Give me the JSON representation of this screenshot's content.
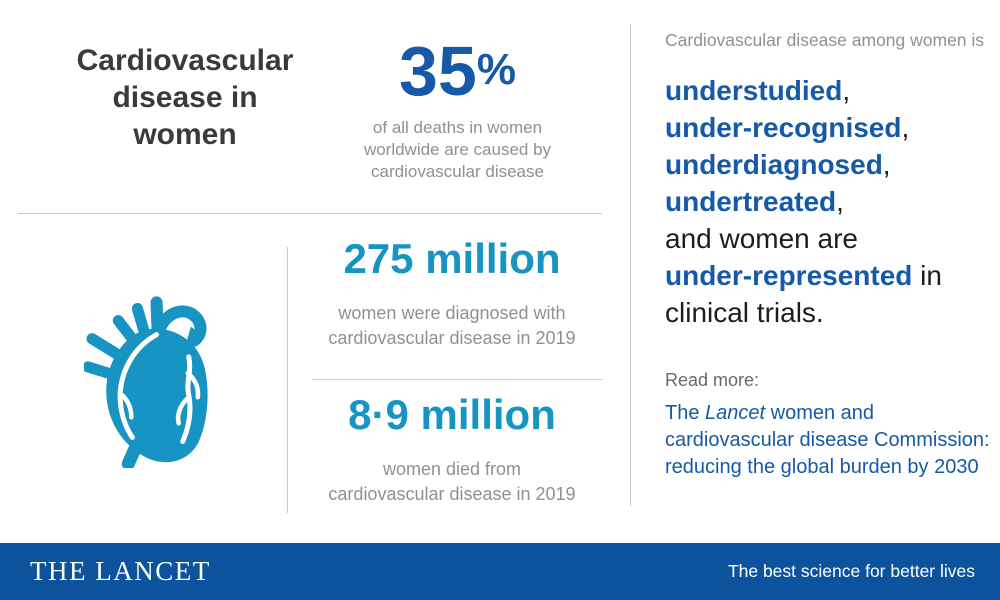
{
  "colors": {
    "blue": "#1659a6",
    "cyan": "#1794c2",
    "navy": "#0d529d",
    "dark": "#3a3a39",
    "black": "#1d1d1b",
    "gray": "#909094",
    "gray_dark": "#6a6a6d",
    "divider": "#c9c9c9",
    "white": "#ffffff"
  },
  "header": {
    "title_lines": [
      "Cardiovascular",
      "disease in",
      "women"
    ]
  },
  "icons": {
    "heart": "anatomical-heart-icon"
  },
  "stats": {
    "deaths_pct": {
      "value": "35",
      "unit": "%",
      "caption_lines": [
        "of all deaths in women",
        "worldwide are caused by",
        "cardiovascular disease"
      ]
    },
    "diagnosed": {
      "value": "275 million",
      "caption_lines": [
        "women were diagnosed with",
        "cardiovascular disease in 2019"
      ]
    },
    "died": {
      "value": "8·9 million",
      "caption_lines": [
        "women died from",
        "cardiovascular disease in 2019"
      ]
    }
  },
  "right_column": {
    "intro": "Cardiovascular disease among women is",
    "statement_lines": [
      [
        {
          "text": "understudied",
          "style": "emphasis"
        },
        {
          "text": ",",
          "style": "plain"
        }
      ],
      [
        {
          "text": "under-recognised",
          "style": "emphasis"
        },
        {
          "text": ",",
          "style": "plain"
        }
      ],
      [
        {
          "text": "underdiagnosed",
          "style": "emphasis"
        },
        {
          "text": ",",
          "style": "plain"
        }
      ],
      [
        {
          "text": "undertreated",
          "style": "emphasis"
        },
        {
          "text": ",",
          "style": "plain"
        }
      ],
      [
        {
          "text": "and women are",
          "style": "plain"
        }
      ],
      [
        {
          "text": "under-represented",
          "style": "emphasis"
        },
        {
          "text": " in",
          "style": "plain"
        }
      ],
      [
        {
          "text": "clinical trials.",
          "style": "plain"
        }
      ]
    ],
    "read_more_label": "Read more:",
    "link_segments": [
      {
        "text": "The ",
        "style": "plain"
      },
      {
        "text": "Lancet",
        "style": "italic"
      },
      {
        "text": " women and\ncardiovascular disease Commission:\nreducing the global burden by 2030",
        "style": "plain"
      }
    ]
  },
  "footer": {
    "brand": "THE LANCET",
    "tagline": "The best science for better lives"
  }
}
